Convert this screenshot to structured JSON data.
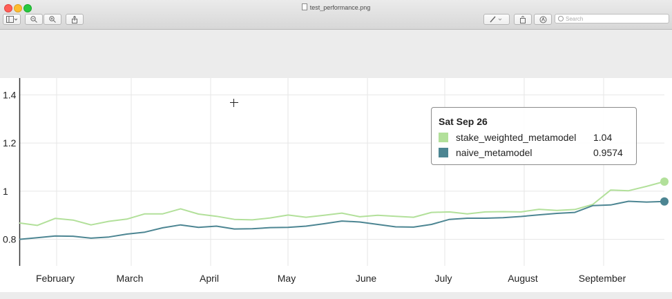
{
  "window": {
    "title": "test_performance.png",
    "search_placeholder": "Search"
  },
  "toolbar": {
    "sidebar_icon": "sidebar-toggle-icon",
    "zoom_out_icon": "zoom-out-icon",
    "zoom_in_icon": "zoom-in-icon",
    "share_icon": "share-icon",
    "markup_icon": "pen-icon",
    "rotate_icon": "rotate-icon",
    "annotate_icon": "markup-circle-icon"
  },
  "colors": {
    "stake_weighted": "#b2e09a",
    "naive": "#4c8592"
  },
  "tooltip": {
    "date": "Sat Sep 26",
    "rows": [
      {
        "name": "stake_weighted_metamodel",
        "value": "1.04"
      },
      {
        "name": "naive_metamodel",
        "value": "0.9574"
      }
    ]
  },
  "chart_data": {
    "type": "line",
    "x_tick_labels": [
      "February",
      "March",
      "April",
      "May",
      "June",
      "July",
      "August",
      "September"
    ],
    "y_tick_labels": [
      "0.8",
      "1",
      "1.2",
      "1.4"
    ],
    "ylim": [
      0.69,
      1.47
    ],
    "grid": true,
    "series": [
      {
        "name": "stake_weighted_metamodel",
        "values": [
          0.868,
          0.858,
          0.887,
          0.88,
          0.86,
          0.875,
          0.884,
          0.906,
          0.906,
          0.927,
          0.905,
          0.896,
          0.883,
          0.881,
          0.889,
          0.901,
          0.892,
          0.9,
          0.909,
          0.894,
          0.9,
          0.896,
          0.892,
          0.912,
          0.914,
          0.906,
          0.914,
          0.915,
          0.914,
          0.925,
          0.92,
          0.924,
          0.945,
          1.005,
          1.002,
          1.02,
          1.04
        ]
      },
      {
        "name": "naive_metamodel",
        "values": [
          0.8,
          0.807,
          0.814,
          0.813,
          0.805,
          0.81,
          0.822,
          0.83,
          0.848,
          0.86,
          0.85,
          0.855,
          0.843,
          0.844,
          0.849,
          0.85,
          0.855,
          0.865,
          0.876,
          0.872,
          0.862,
          0.852,
          0.851,
          0.862,
          0.883,
          0.888,
          0.888,
          0.89,
          0.895,
          0.902,
          0.908,
          0.912,
          0.94,
          0.943,
          0.958,
          0.955,
          0.9574
        ]
      }
    ]
  }
}
